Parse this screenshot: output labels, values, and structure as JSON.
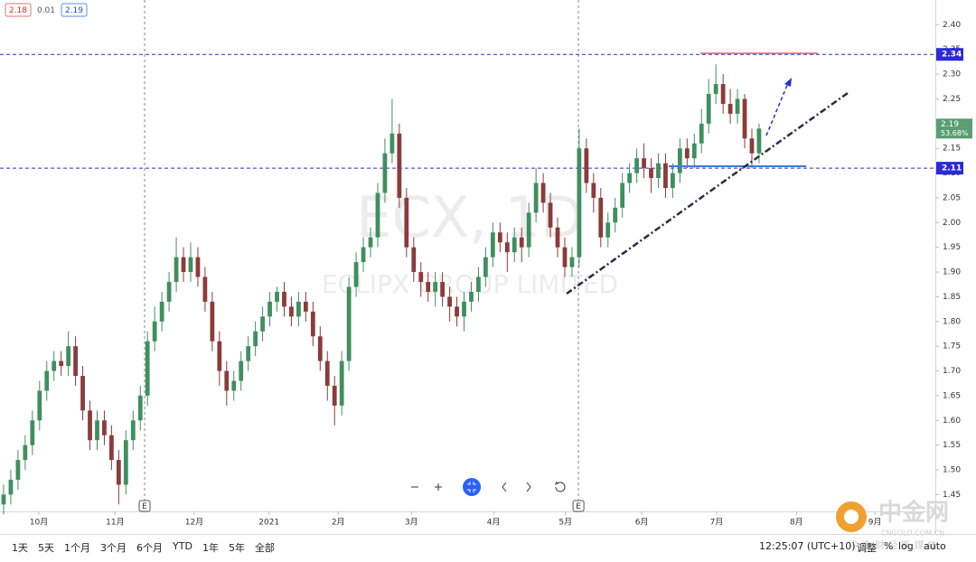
{
  "chart_data": {
    "type": "candlestick",
    "watermark": "ECX, 1D",
    "watermark_name": "ECLIPX GROUP LIMITED",
    "quote": {
      "bid": 2.18,
      "spread": 0.01,
      "ask": 2.19
    },
    "open": [
      1.43,
      1.45,
      1.48,
      1.52,
      1.55,
      1.6,
      1.66,
      1.7,
      1.72,
      1.71,
      1.75,
      1.69,
      1.62,
      1.56,
      1.6,
      1.57,
      1.52,
      1.47,
      1.56,
      1.6,
      1.65,
      1.76,
      1.8,
      1.84,
      1.88,
      1.93,
      1.9,
      1.93,
      1.89,
      1.84,
      1.76,
      1.7,
      1.66,
      1.68,
      1.72,
      1.75,
      1.78,
      1.81,
      1.84,
      1.86,
      1.83,
      1.81,
      1.84,
      1.82,
      1.77,
      1.72,
      1.67,
      1.63,
      1.72,
      1.87,
      1.92,
      1.95,
      1.97,
      2.06,
      2.14,
      2.18,
      2.05,
      1.95,
      1.9,
      1.88,
      1.86,
      1.88,
      1.85,
      1.83,
      1.81,
      1.84,
      1.86,
      1.89,
      1.93,
      1.98,
      1.96,
      1.94,
      1.97,
      1.95,
      2.02,
      2.08,
      2.04,
      1.99,
      1.95,
      1.91,
      1.93,
      2.15,
      2.08,
      2.05,
      1.97,
      2.0,
      2.03,
      2.08,
      2.1,
      2.13,
      2.11,
      2.09,
      2.12,
      2.07,
      2.1,
      2.15,
      2.13,
      2.16,
      2.2,
      2.26,
      2.28,
      2.24,
      2.22,
      2.25,
      2.17,
      2.14
    ],
    "high": [
      1.47,
      1.5,
      1.54,
      1.57,
      1.62,
      1.68,
      1.72,
      1.74,
      1.74,
      1.78,
      1.77,
      1.71,
      1.64,
      1.62,
      1.62,
      1.59,
      1.54,
      1.58,
      1.62,
      1.67,
      1.78,
      1.83,
      1.86,
      1.9,
      1.97,
      1.95,
      1.96,
      1.95,
      1.91,
      1.86,
      1.78,
      1.72,
      1.7,
      1.74,
      1.77,
      1.8,
      1.83,
      1.86,
      1.87,
      1.88,
      1.85,
      1.86,
      1.86,
      1.84,
      1.79,
      1.74,
      1.69,
      1.74,
      1.89,
      1.94,
      1.97,
      1.99,
      2.08,
      2.17,
      2.25,
      2.2,
      2.07,
      1.97,
      1.92,
      1.9,
      1.9,
      1.9,
      1.87,
      1.85,
      1.86,
      1.88,
      1.91,
      1.95,
      2.0,
      2.0,
      1.98,
      1.99,
      1.99,
      2.04,
      2.11,
      2.1,
      2.06,
      2.01,
      1.97,
      1.95,
      2.19,
      2.17,
      2.1,
      2.07,
      2.02,
      2.05,
      2.1,
      2.12,
      2.15,
      2.16,
      2.13,
      2.14,
      2.14,
      2.12,
      2.17,
      2.17,
      2.18,
      2.23,
      2.29,
      2.32,
      2.3,
      2.27,
      2.27,
      2.26,
      2.19,
      2.2
    ],
    "low": [
      1.41,
      1.43,
      1.46,
      1.5,
      1.53,
      1.58,
      1.64,
      1.68,
      1.69,
      1.69,
      1.67,
      1.6,
      1.54,
      1.54,
      1.55,
      1.5,
      1.43,
      1.45,
      1.54,
      1.58,
      1.63,
      1.74,
      1.78,
      1.82,
      1.86,
      1.88,
      1.88,
      1.87,
      1.82,
      1.74,
      1.67,
      1.63,
      1.64,
      1.66,
      1.7,
      1.73,
      1.76,
      1.79,
      1.82,
      1.81,
      1.79,
      1.79,
      1.8,
      1.75,
      1.7,
      1.64,
      1.59,
      1.61,
      1.7,
      1.85,
      1.9,
      1.93,
      1.95,
      2.04,
      2.12,
      2.03,
      1.93,
      1.88,
      1.85,
      1.84,
      1.83,
      1.83,
      1.8,
      1.79,
      1.78,
      1.82,
      1.84,
      1.87,
      1.91,
      1.94,
      1.9,
      1.92,
      1.92,
      1.93,
      2.0,
      2.02,
      1.97,
      1.93,
      1.89,
      1.89,
      1.91,
      2.06,
      2.02,
      1.95,
      1.95,
      1.98,
      2.01,
      2.06,
      2.08,
      2.09,
      2.06,
      2.07,
      2.05,
      2.05,
      2.08,
      2.11,
      2.11,
      2.14,
      2.18,
      2.24,
      2.22,
      2.2,
      2.2,
      2.15,
      2.11,
      2.12
    ],
    "close": [
      1.45,
      1.48,
      1.52,
      1.55,
      1.6,
      1.66,
      1.7,
      1.72,
      1.71,
      1.75,
      1.69,
      1.62,
      1.56,
      1.6,
      1.57,
      1.52,
      1.47,
      1.56,
      1.6,
      1.65,
      1.76,
      1.8,
      1.84,
      1.88,
      1.93,
      1.9,
      1.93,
      1.89,
      1.84,
      1.76,
      1.7,
      1.66,
      1.68,
      1.72,
      1.75,
      1.78,
      1.81,
      1.84,
      1.86,
      1.83,
      1.81,
      1.84,
      1.82,
      1.77,
      1.72,
      1.67,
      1.63,
      1.72,
      1.87,
      1.92,
      1.95,
      1.97,
      2.06,
      2.14,
      2.18,
      2.05,
      1.95,
      1.9,
      1.88,
      1.86,
      1.88,
      1.85,
      1.83,
      1.81,
      1.84,
      1.86,
      1.89,
      1.93,
      1.98,
      1.96,
      1.94,
      1.97,
      1.95,
      2.02,
      2.08,
      2.04,
      1.99,
      1.95,
      1.91,
      1.93,
      2.15,
      2.08,
      2.05,
      1.97,
      2.0,
      2.03,
      2.08,
      2.1,
      2.13,
      2.11,
      2.09,
      2.12,
      2.07,
      2.1,
      2.15,
      2.13,
      2.16,
      2.2,
      2.26,
      2.28,
      2.24,
      2.22,
      2.25,
      2.17,
      2.14,
      2.19
    ],
    "up_color": "#3f8f5f",
    "down_color": "#8c3a3a",
    "xlim": [
      0,
      130
    ],
    "xticks": [
      {
        "value": 5.4,
        "label": "10月"
      },
      {
        "value": 16.0,
        "label": "11月"
      },
      {
        "value": 27.0,
        "label": "12月"
      },
      {
        "value": 37.4,
        "label": "2021"
      },
      {
        "value": 47.0,
        "label": "2月"
      },
      {
        "value": 57.2,
        "label": "3月"
      },
      {
        "value": 68.6,
        "label": "4月"
      },
      {
        "value": 78.6,
        "label": "5月"
      },
      {
        "value": 89.2,
        "label": "6月"
      },
      {
        "value": 99.6,
        "label": "7月"
      },
      {
        "value": 110.7,
        "label": "8月"
      },
      {
        "value": 121.6,
        "label": "9月"
      }
    ],
    "ylim": [
      1.416,
      2.45
    ],
    "yticks": [
      {
        "value": 1.45,
        "label": "1.45"
      },
      {
        "value": 1.5,
        "label": "1.50"
      },
      {
        "value": 1.55,
        "label": "1.55"
      },
      {
        "value": 1.6,
        "label": "1.60"
      },
      {
        "value": 1.65,
        "label": "1.65"
      },
      {
        "value": 1.7,
        "label": "1.70"
      },
      {
        "value": 1.75,
        "label": "1.75"
      },
      {
        "value": 1.8,
        "label": "1.80"
      },
      {
        "value": 1.85,
        "label": "1.85"
      },
      {
        "value": 1.9,
        "label": "1.90"
      },
      {
        "value": 1.95,
        "label": "1.95"
      },
      {
        "value": 2.0,
        "label": "2.00"
      },
      {
        "value": 2.05,
        "label": "2.05"
      },
      {
        "value": 2.1,
        "label": "2.10"
      },
      {
        "value": 2.15,
        "label": "2.15"
      },
      {
        "value": 2.2,
        "label": "2.20"
      },
      {
        "value": 2.25,
        "label": "2.25"
      },
      {
        "value": 2.3,
        "label": "2.30"
      },
      {
        "value": 2.35,
        "label": "2.35"
      },
      {
        "value": 2.4,
        "label": "2.40"
      }
    ],
    "grid": false,
    "price_lines": [
      2.34,
      2.11
    ],
    "price_line_color": "#2a2ad8",
    "last_price": 2.19,
    "last_change": {
      "value": 53.68,
      "label": "53.68%"
    },
    "last_color": "#5a9e72",
    "events": [
      {
        "x": 20.1,
        "label": "E"
      },
      {
        "x": 80.4,
        "label": "E"
      }
    ]
  },
  "toolbar": {
    "ranges": [
      "1天",
      "5天",
      "1个月",
      "3个月",
      "6个月",
      "YTD",
      "1年",
      "5年",
      "全部"
    ],
    "time": "12:25:07 (UTC+10)",
    "options": [
      "调整",
      "%",
      "log",
      "auto"
    ]
  },
  "logo": {
    "name": "中金网",
    "url": "CNGOLD.COM.CN",
    "tagline": "中 金 财 经 新 媒 体"
  }
}
